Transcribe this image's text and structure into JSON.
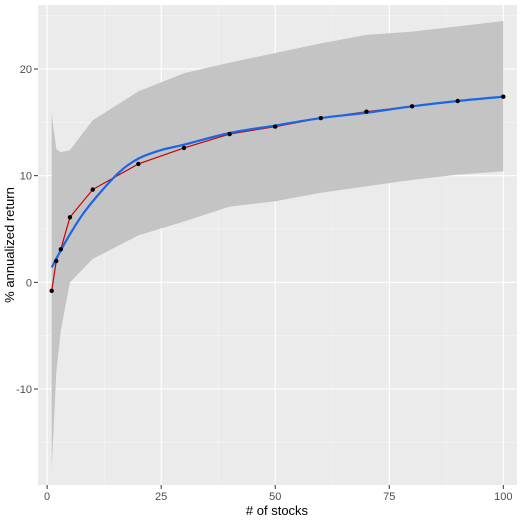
{
  "chart_data": {
    "type": "line",
    "title": "",
    "xlabel": "# of stocks",
    "ylabel": "% annualized return",
    "xlim": [
      -2,
      103
    ],
    "ylim": [
      -19,
      26
    ],
    "xticks": [
      0,
      25,
      50,
      75,
      100
    ],
    "yticks": [
      -10,
      0,
      10,
      20
    ],
    "grid": true,
    "legend": "none",
    "colors": {
      "panel": "#ebebeb",
      "grid_major": "#ffffff",
      "grid_minor": "#f5f5f5",
      "band": "#c4c4c4",
      "observed_line": "#cc0000",
      "smooth_line": "#1a66e6",
      "points": "#000000"
    },
    "band": {
      "x": [
        1,
        2,
        3,
        5,
        10,
        20,
        30,
        40,
        50,
        60,
        70,
        80,
        90,
        100
      ],
      "upper": [
        15.8,
        12.5,
        12.2,
        12.4,
        15.2,
        17.9,
        19.6,
        20.6,
        21.5,
        22.4,
        23.2,
        23.5,
        24.0,
        24.5
      ],
      "lower": [
        -17.5,
        -8.5,
        -4.5,
        0.0,
        2.2,
        4.4,
        5.7,
        7.1,
        7.6,
        8.4,
        9.0,
        9.6,
        10.1,
        10.4
      ]
    },
    "series": [
      {
        "kind": "observed",
        "x": [
          1,
          2,
          3,
          5,
          10,
          20,
          30,
          40,
          50,
          60,
          70,
          80,
          90,
          100
        ],
        "y": [
          -0.8,
          2.0,
          3.1,
          6.1,
          8.7,
          11.1,
          12.6,
          13.9,
          14.6,
          15.4,
          16.0,
          16.5,
          17.0,
          17.4
        ]
      },
      {
        "kind": "smooth",
        "x": [
          1,
          3,
          5,
          8,
          12,
          16,
          20,
          25,
          30,
          40,
          50,
          60,
          70,
          80,
          90,
          100
        ],
        "y": [
          1.4,
          3.0,
          4.5,
          6.5,
          8.6,
          10.4,
          11.6,
          12.4,
          12.9,
          14.0,
          14.7,
          15.4,
          15.9,
          16.5,
          17.0,
          17.4
        ]
      }
    ]
  }
}
